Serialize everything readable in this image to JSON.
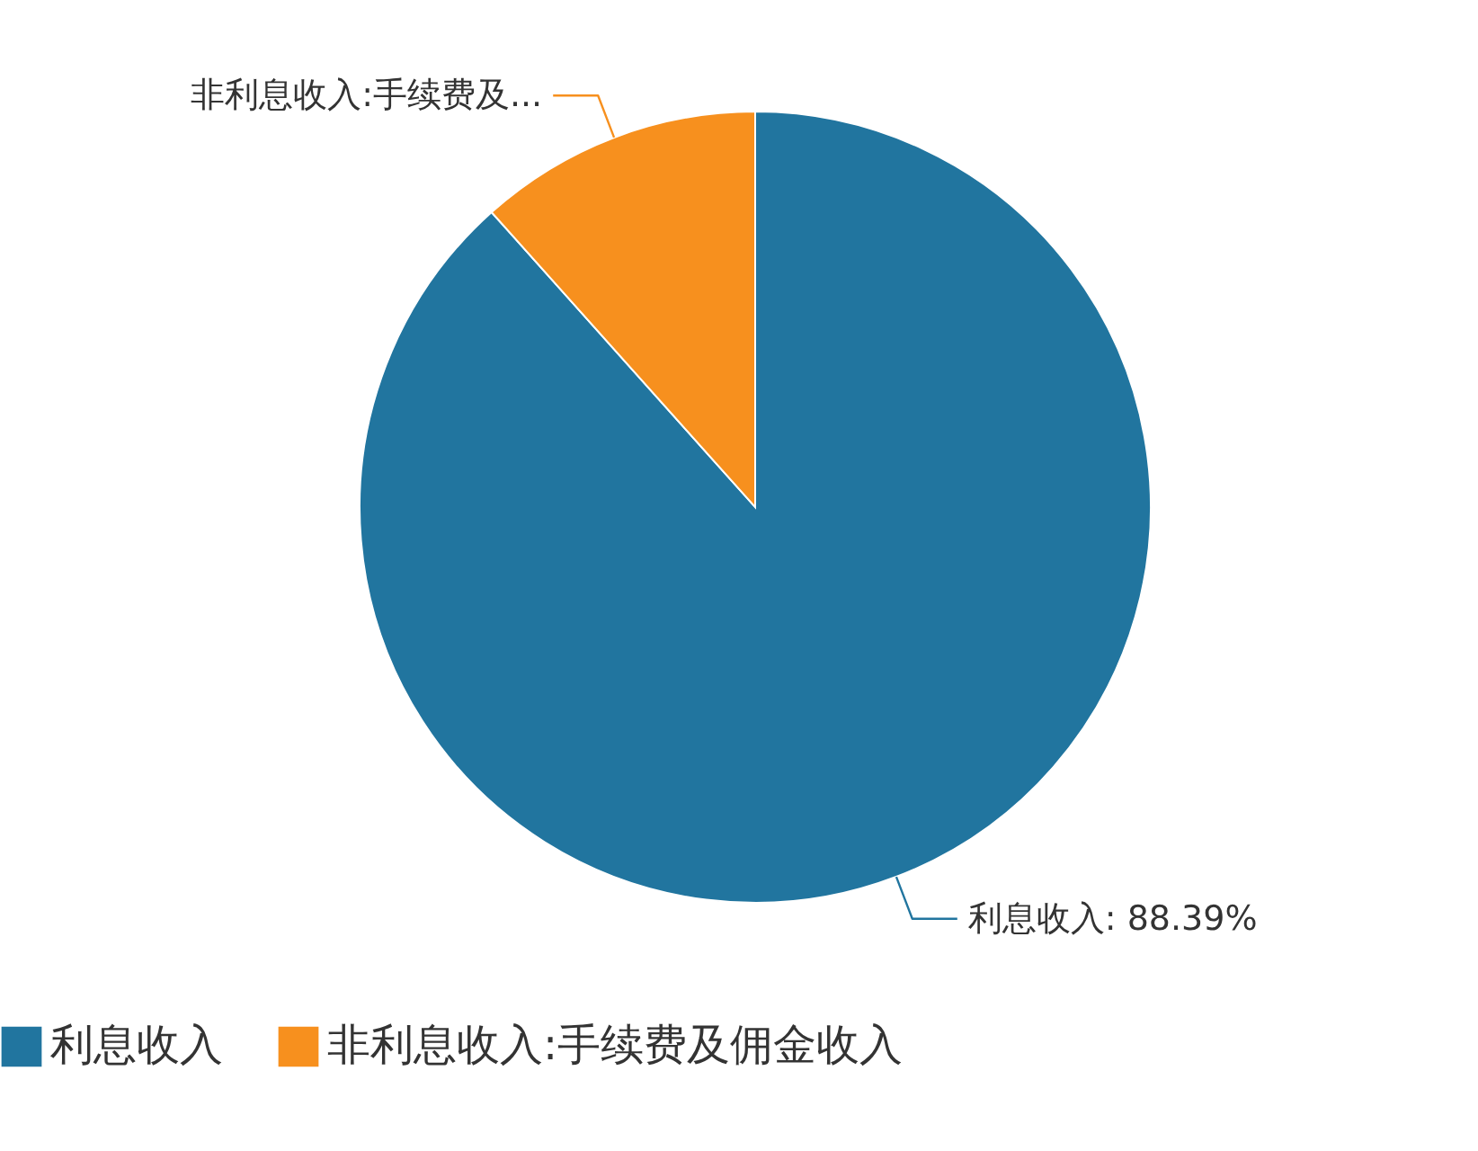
{
  "chart_data": {
    "type": "pie",
    "categories": [
      "利息收入",
      "非利息收入:手续费及佣金收入"
    ],
    "values": [
      88.39,
      11.61
    ],
    "colors": [
      "#21759f",
      "#f7901e"
    ],
    "value_labels": [
      "利息收入: 88.39%",
      "非利息收入:手续费及..."
    ],
    "legend": "bottom"
  }
}
